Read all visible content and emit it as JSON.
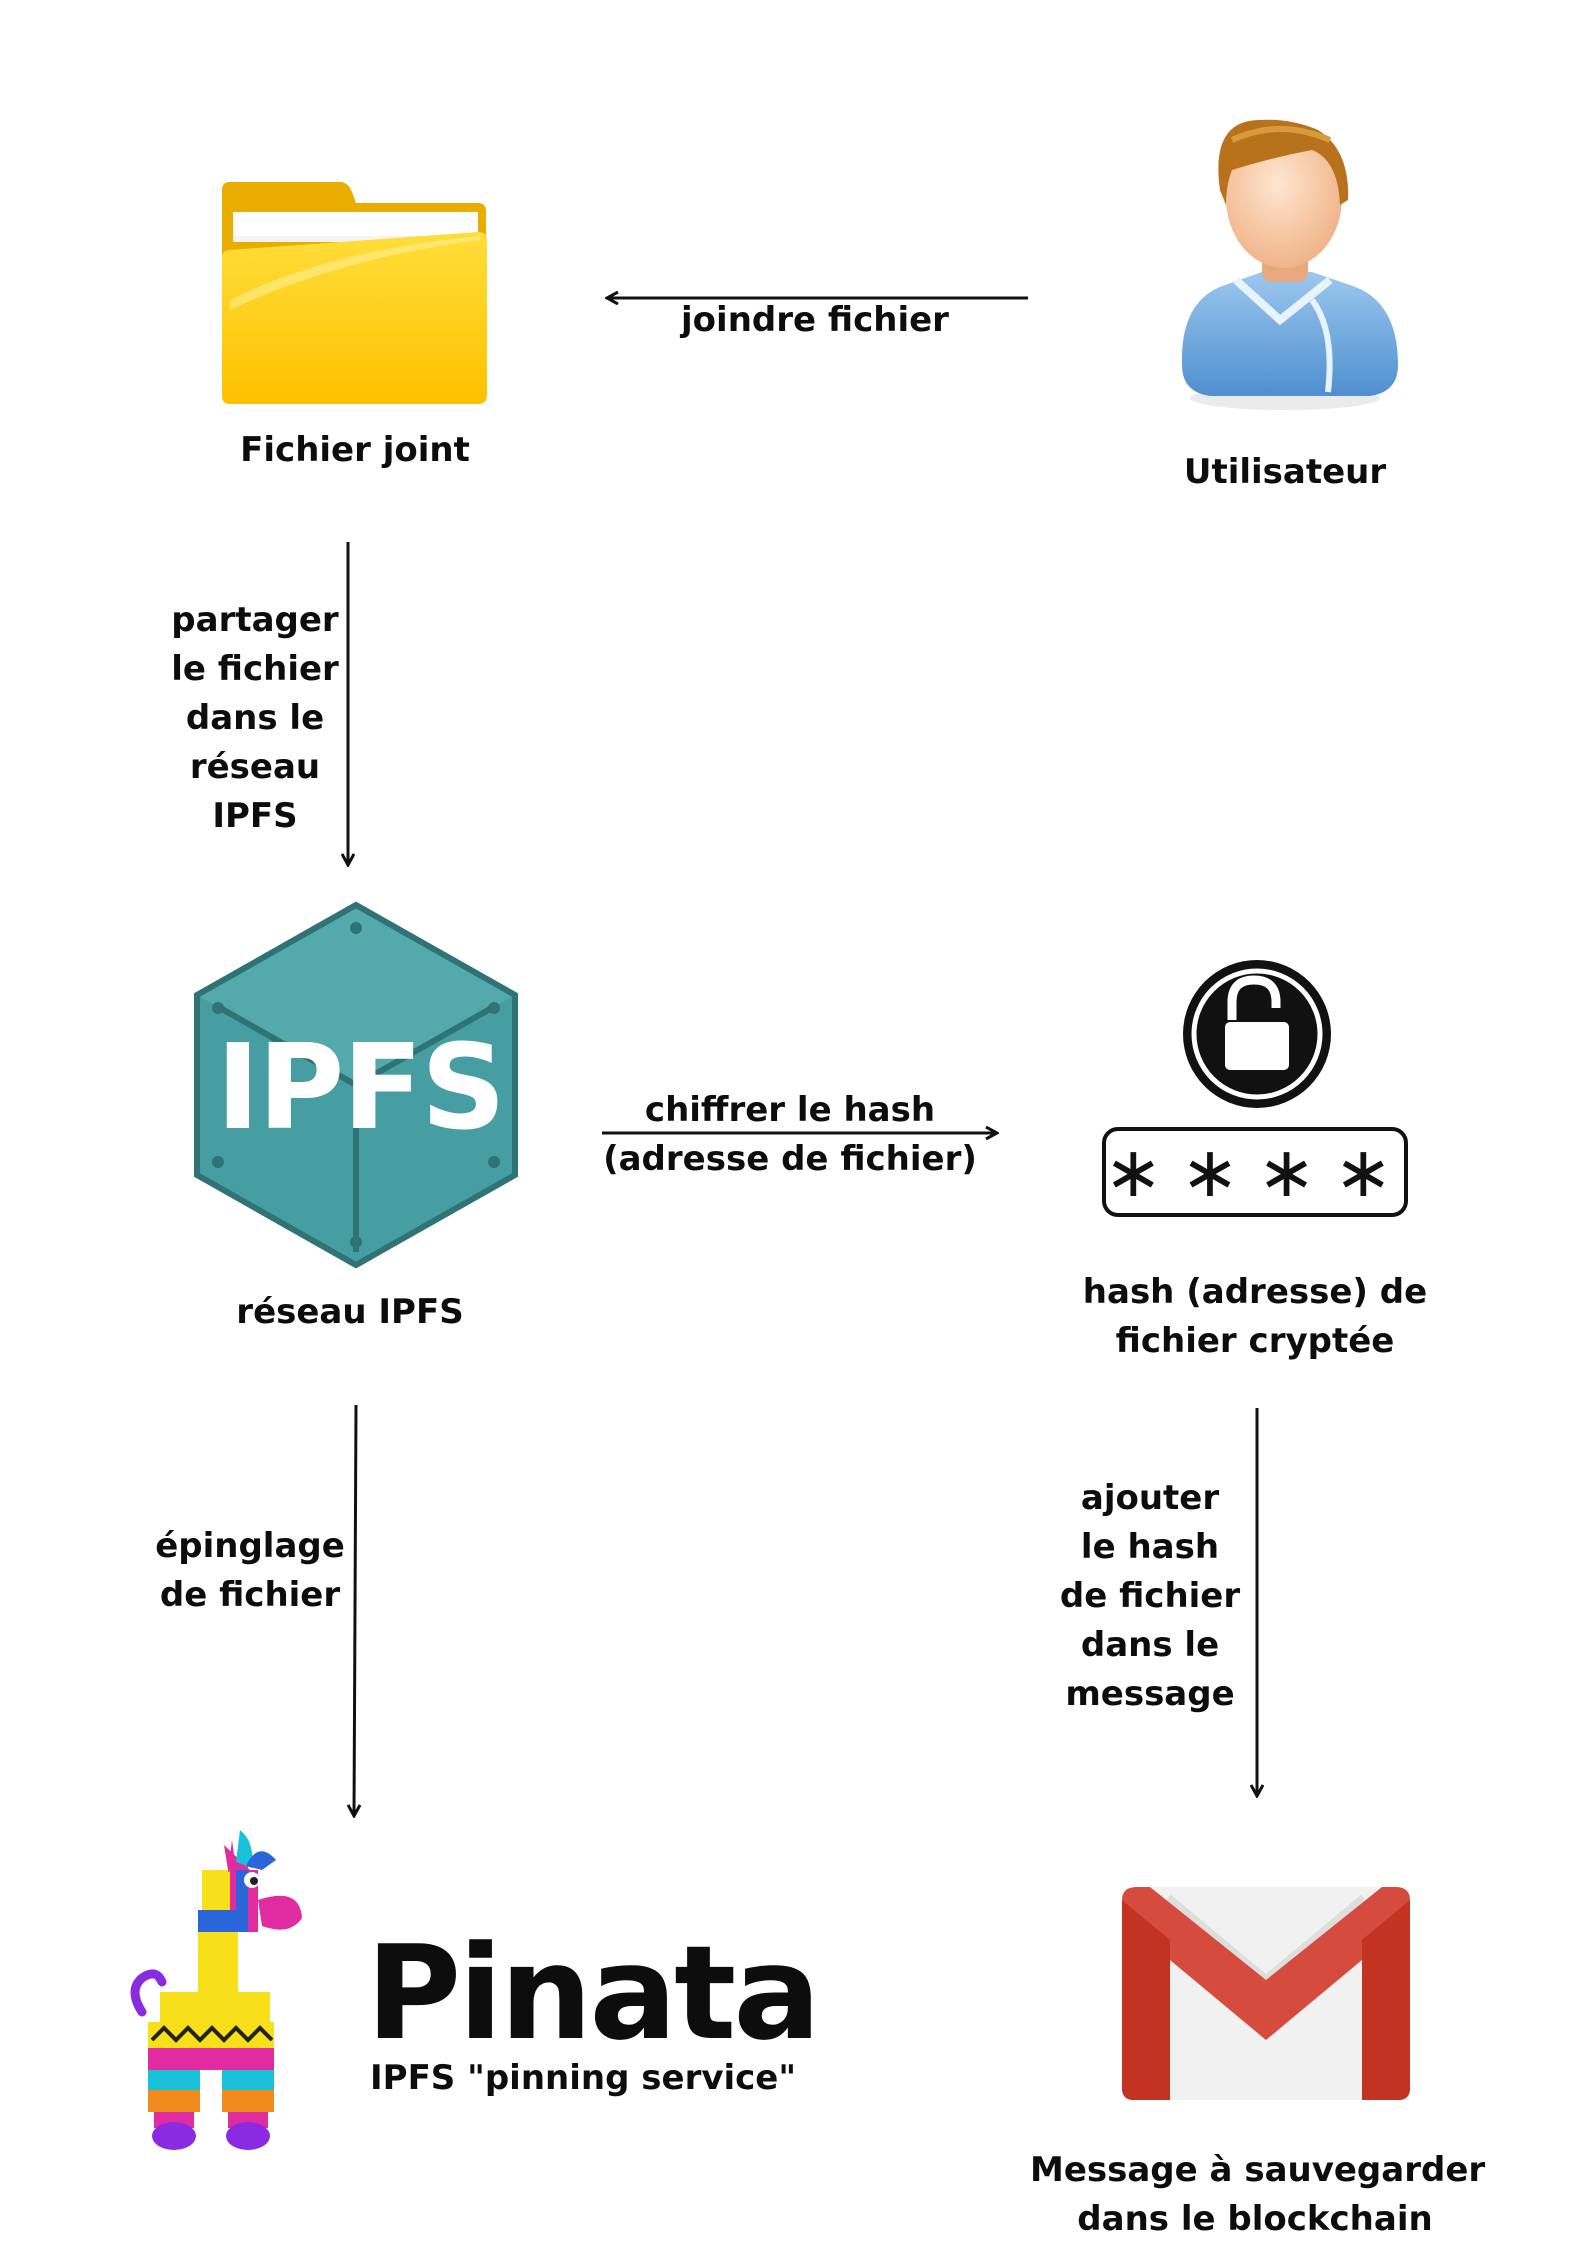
{
  "nodes": {
    "user": "Utilisateur",
    "file": "Fichier joint",
    "ipfs": "réseau IPFS",
    "ipfs_logo_text": "IPFS",
    "hash_line1": "hash (adresse) de",
    "hash_line2": "fichier cryptée",
    "password_mask": "∗∗∗∗",
    "pinata_word": "Pinata",
    "pinata_sub": "IPFS \"pinning service\"",
    "message_line1": "Message à sauvegarder",
    "message_line2": "dans le blockchain"
  },
  "edges": {
    "attach": "joindre fichier",
    "share": [
      "partager",
      "le fichier",
      "dans le",
      "réseau",
      "IPFS"
    ],
    "encrypt": [
      "chiffrer le hash",
      "(adresse de fichier)"
    ],
    "pin": [
      "épinglage",
      "de fichier"
    ],
    "add": [
      "ajouter",
      "le hash",
      "de fichier",
      "dans le",
      "message"
    ]
  },
  "colors": {
    "ipfs_teal": "#469ea2",
    "ipfs_dark": "#2f7375",
    "folder_yellow": "#ffcd05",
    "gmail_red": "#d54b3d",
    "user_shirt": "#6fa8dc"
  }
}
